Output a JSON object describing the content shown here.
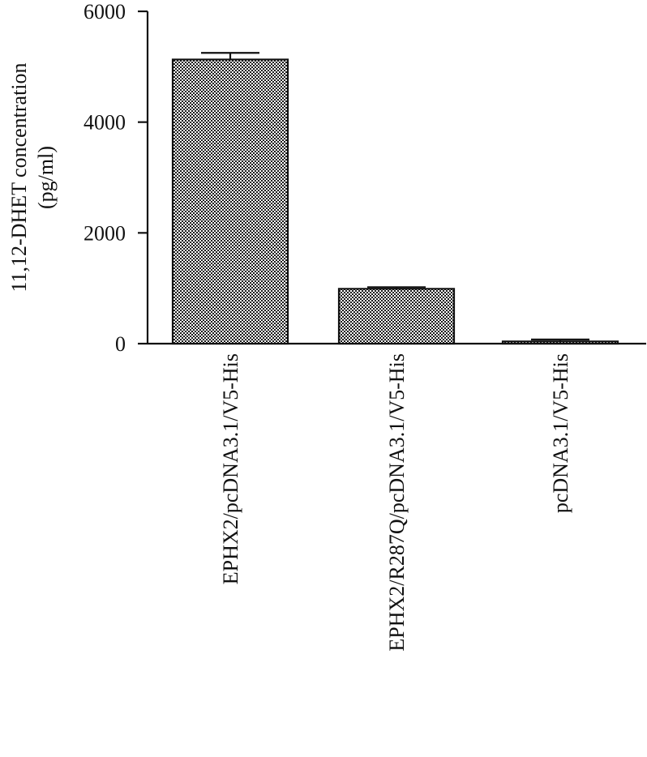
{
  "chart_data": {
    "type": "bar",
    "categories": [
      "EPHX2/pcDNA3.1/V5-His",
      "EPHX2/R287Q/pcDNA3.1/V5-His",
      "pcDNA3.1/V5-His"
    ],
    "values": [
      5130,
      990,
      40
    ],
    "errors": [
      120,
      30,
      35
    ],
    "ylabel_line1": "11,12-DHET concentration",
    "ylabel_line2": "(pg/ml)",
    "xlabel": "",
    "title": "",
    "ylim": [
      0,
      6000
    ],
    "yticks": [
      0,
      2000,
      4000,
      6000
    ],
    "ytick_labels": [
      "0",
      "2000",
      "4000",
      "6000"
    ],
    "grid": false,
    "legend": "none",
    "bar_pattern": "checkerboard-dots",
    "colors": {
      "bar_fill": "#1a1a1a",
      "axis": "#111111",
      "background": "#ffffff"
    }
  }
}
